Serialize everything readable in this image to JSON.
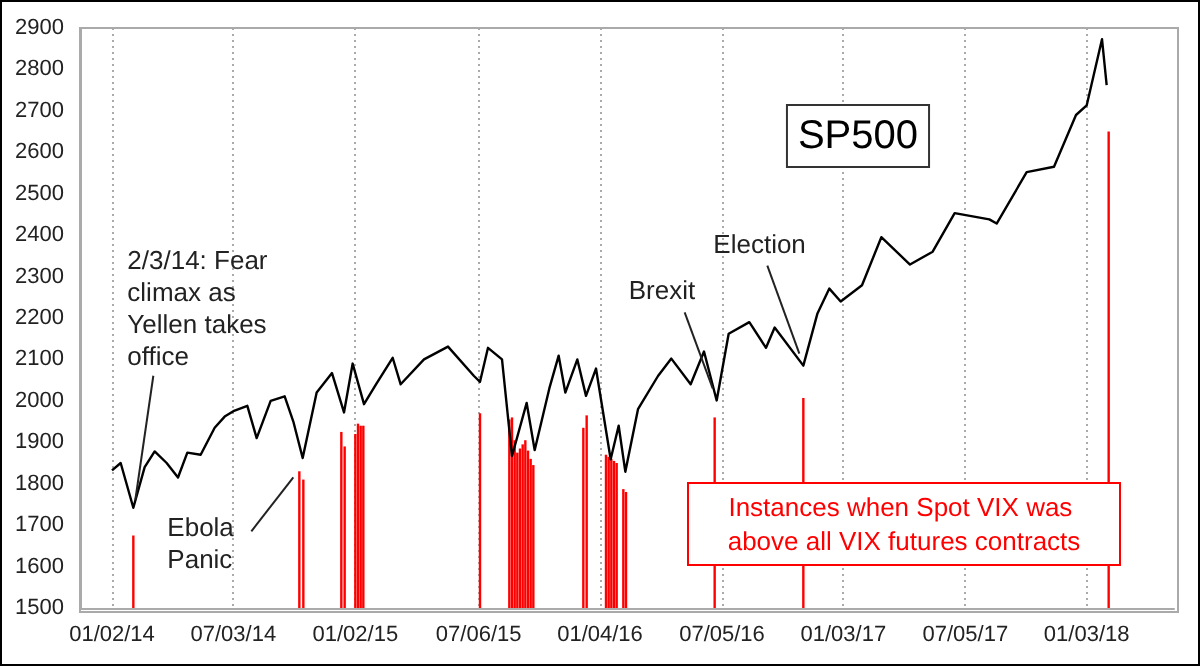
{
  "chart_data": {
    "type": "line",
    "xlim": [
      "2013-11-15",
      "2018-05-14"
    ],
    "xticks": [
      {
        "value": "2014-01-02",
        "label": "01/02/14"
      },
      {
        "value": "2014-07-03",
        "label": "07/03/14"
      },
      {
        "value": "2015-01-02",
        "label": "01/02/15"
      },
      {
        "value": "2015-07-06",
        "label": "07/06/15"
      },
      {
        "value": "2016-01-04",
        "label": "01/04/16"
      },
      {
        "value": "2016-07-05",
        "label": "07/05/16"
      },
      {
        "value": "2017-01-03",
        "label": "01/03/17"
      },
      {
        "value": "2017-07-05",
        "label": "07/05/17"
      },
      {
        "value": "2018-01-03",
        "label": "01/03/18"
      }
    ],
    "ylim": [
      1500,
      2900
    ],
    "yticks": [
      1500,
      1600,
      1700,
      1800,
      1900,
      2000,
      2100,
      2200,
      2300,
      2400,
      2500,
      2600,
      2700,
      2800,
      2900
    ],
    "grid": "x",
    "series": [
      {
        "name": "SP500",
        "color": "#000000",
        "x": [
          "2014-01-02",
          "2014-01-15",
          "2014-02-03",
          "2014-02-20",
          "2014-03-07",
          "2014-03-25",
          "2014-04-11",
          "2014-04-25",
          "2014-05-15",
          "2014-06-05",
          "2014-06-20",
          "2014-07-03",
          "2014-07-24",
          "2014-08-07",
          "2014-08-28",
          "2014-09-18",
          "2014-10-01",
          "2014-10-15",
          "2014-11-05",
          "2014-11-28",
          "2014-12-16",
          "2014-12-29",
          "2015-01-15",
          "2015-02-02",
          "2015-02-27",
          "2015-03-11",
          "2015-04-15",
          "2015-05-21",
          "2015-06-29",
          "2015-07-08",
          "2015-07-20",
          "2015-08-10",
          "2015-08-25",
          "2015-09-16",
          "2015-09-28",
          "2015-10-20",
          "2015-11-03",
          "2015-11-13",
          "2015-12-01",
          "2015-12-14",
          "2015-12-29",
          "2016-01-20",
          "2016-02-01",
          "2016-02-11",
          "2016-03-01",
          "2016-03-31",
          "2016-04-20",
          "2016-05-19",
          "2016-06-08",
          "2016-06-27",
          "2016-07-15",
          "2016-08-15",
          "2016-09-09",
          "2016-09-22",
          "2016-11-04",
          "2016-11-25",
          "2016-12-13",
          "2016-12-30",
          "2017-01-31",
          "2017-03-01",
          "2017-04-13",
          "2017-05-17",
          "2017-06-19",
          "2017-08-10",
          "2017-08-21",
          "2017-10-05",
          "2017-11-15",
          "2017-12-18",
          "2018-01-03",
          "2018-01-26",
          "2018-02-02"
        ],
        "values": [
          1832,
          1850,
          1742,
          1840,
          1878,
          1850,
          1815,
          1875,
          1870,
          1935,
          1962,
          1975,
          1988,
          1910,
          2000,
          2011,
          1950,
          1862,
          2020,
          2067,
          1972,
          2090,
          1992,
          2040,
          2104,
          2040,
          2100,
          2131,
          2060,
          2046,
          2128,
          2100,
          1867,
          1995,
          1881,
          2030,
          2109,
          2020,
          2100,
          2012,
          2078,
          1859,
          1940,
          1829,
          1980,
          2060,
          2102,
          2040,
          2119,
          2001,
          2162,
          2190,
          2128,
          2177,
          2085,
          2210,
          2271,
          2240,
          2279,
          2395,
          2329,
          2360,
          2453,
          2438,
          2428,
          2552,
          2565,
          2690,
          2713,
          2873,
          2762
        ]
      },
      {
        "name": "Instances when Spot VIX was above all VIX futures contracts",
        "type": "bar",
        "color": "#ff0000",
        "x": [
          "2014-02-03",
          "2014-10-10",
          "2014-10-16",
          "2014-12-12",
          "2014-12-17",
          "2015-01-02",
          "2015-01-06",
          "2015-01-10",
          "2015-01-14",
          "2015-07-08",
          "2015-08-21",
          "2015-08-25",
          "2015-08-29",
          "2015-09-02",
          "2015-09-06",
          "2015-09-10",
          "2015-09-14",
          "2015-09-18",
          "2015-09-22",
          "2015-09-26",
          "2015-12-10",
          "2015-12-15",
          "2016-01-13",
          "2016-01-17",
          "2016-01-21",
          "2016-01-25",
          "2016-01-29",
          "2016-02-08",
          "2016-02-12",
          "2016-06-24",
          "2016-11-04",
          "2018-02-05"
        ],
        "values": [
          1675,
          1830,
          1810,
          1925,
          1890,
          1920,
          1945,
          1940,
          1940,
          1970,
          1955,
          1960,
          1905,
          1875,
          1885,
          1895,
          1905,
          1880,
          1860,
          1845,
          1935,
          1965,
          1870,
          1865,
          1860,
          1855,
          1850,
          1787,
          1780,
          1960,
          2007,
          2650
        ]
      }
    ],
    "annotations": [
      {
        "text": "2/3/14: Fear climax as Yellen takes office",
        "x": "2014-02-03",
        "y": 1742
      },
      {
        "text": "Ebola Panic",
        "x": "2014-10-10",
        "y": 1830
      },
      {
        "text": "Brexit",
        "x": "2016-06-27",
        "y": 2001
      },
      {
        "text": "Election",
        "x": "2016-11-04",
        "y": 2085
      }
    ]
  }
}
